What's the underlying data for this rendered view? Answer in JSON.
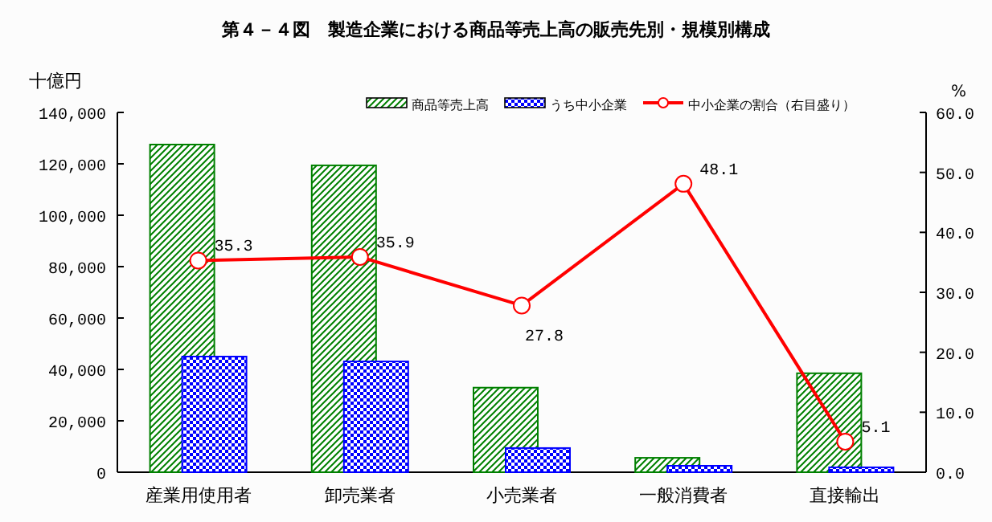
{
  "chart_data": {
    "type": "bar",
    "title": "第４－４図　製造企業における商品等売上高の販売先別・規模別構成",
    "ylabel": "十億円",
    "y2label": "%",
    "categories": [
      "産業用使用者",
      "卸売業者",
      "小売業者",
      "一般消費者",
      "直接輸出"
    ],
    "series": [
      {
        "name": "商品等売上高",
        "color": "#008000",
        "values": [
          127500,
          119400,
          32900,
          5600,
          38500
        ]
      },
      {
        "name": "うち中小企業",
        "color": "#0000ff",
        "values": [
          45000,
          43100,
          9400,
          2500,
          1900
        ]
      },
      {
        "name": "中小企業の割合（右目盛り）",
        "type": "line",
        "axis": "y2",
        "color": "#ff0000",
        "marker": "circle",
        "values": [
          35.3,
          35.9,
          27.8,
          48.1,
          5.1
        ],
        "value_labels": [
          "35.3",
          "35.9",
          "27.8",
          "48.1",
          "5.1"
        ]
      }
    ],
    "ylim": [
      0,
      140000
    ],
    "yticks": [
      0,
      {
        "value": 20000,
        "label": "20,000"
      },
      {
        "value": 40000,
        "label": "40,000"
      },
      {
        "value": 60000,
        "label": "60,000"
      },
      {
        "value": 80000,
        "label": "80,000"
      },
      {
        "value": 100000,
        "label": "100,000"
      },
      {
        "value": 120000,
        "label": "120,000"
      },
      {
        "value": 140000,
        "label": "140,000"
      }
    ],
    "y2lim": [
      0,
      60
    ],
    "y2ticks": [
      {
        "value": 0,
        "label": "0.0"
      },
      {
        "value": 10,
        "label": "10.0"
      },
      {
        "value": 20,
        "label": "20.0"
      },
      {
        "value": 30,
        "label": "30.0"
      },
      {
        "value": 40,
        "label": "40.0"
      },
      {
        "value": 50,
        "label": "50.0"
      },
      {
        "value": 60,
        "label": "60.0"
      }
    ],
    "legend": "top",
    "grid": false
  }
}
